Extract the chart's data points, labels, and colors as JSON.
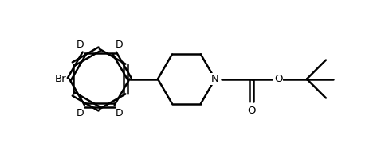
{
  "bg_color": "#ffffff",
  "line_color": "#000000",
  "line_width": 1.8,
  "figsize": [
    4.89,
    1.99
  ],
  "dpi": 100,
  "xlim": [
    0,
    9.8
  ],
  "ylim": [
    0,
    4.2
  ]
}
